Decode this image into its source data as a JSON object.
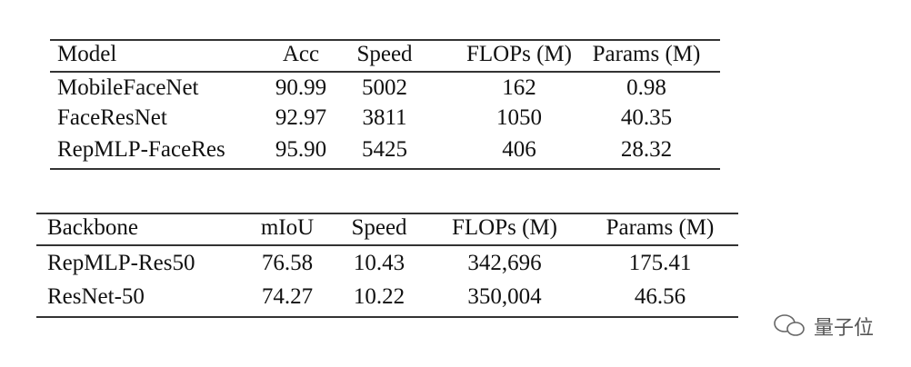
{
  "tables": [
    {
      "header": [
        "Model",
        "Acc",
        "Speed",
        "FLOPs (M)",
        "Params (M)"
      ],
      "rows": [
        [
          "MobileFaceNet",
          "90.99",
          "5002",
          "162",
          "0.98"
        ],
        [
          "FaceResNet",
          "92.97",
          "3811",
          "1050",
          "40.35"
        ],
        [
          "RepMLP-FaceRes",
          "95.90",
          "5425",
          "406",
          "28.32"
        ]
      ]
    },
    {
      "header": [
        "Backbone",
        "mIoU",
        "Speed",
        "FLOPs (M)",
        "Params (M)"
      ],
      "rows": [
        [
          "RepMLP-Res50",
          "76.58",
          "10.43",
          "342,696",
          "175.41"
        ],
        [
          "ResNet-50",
          "74.27",
          "10.22",
          "350,004",
          "46.56"
        ]
      ]
    }
  ],
  "watermark": "量子位"
}
